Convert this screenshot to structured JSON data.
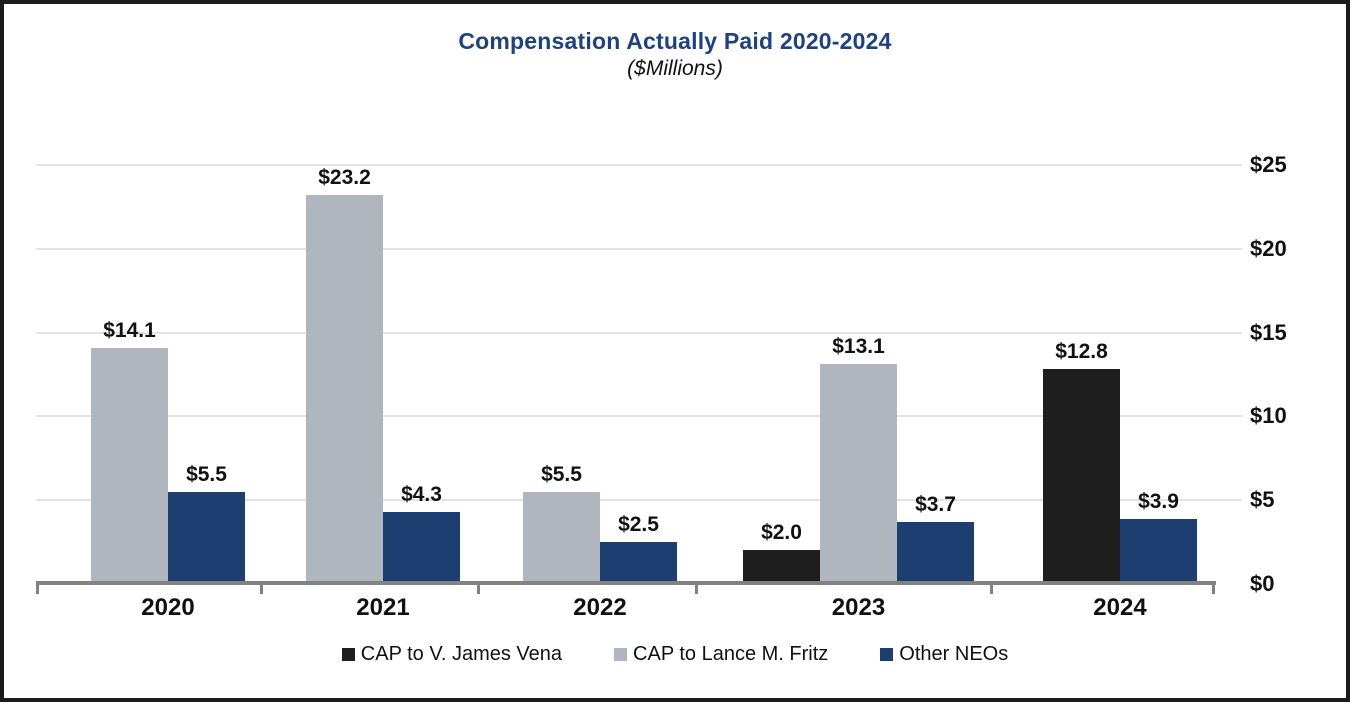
{
  "chart_data": {
    "type": "bar",
    "title": "Compensation Actually Paid 2020-2024",
    "subtitle": "($Millions)",
    "categories": [
      "2020",
      "2021",
      "2022",
      "2023",
      "2024"
    ],
    "series": [
      {
        "name": "CAP to V. James Vena",
        "color": "#1e1e1e",
        "values": [
          null,
          null,
          null,
          2.0,
          12.8
        ]
      },
      {
        "name": "CAP to Lance M. Fritz",
        "color": "#afb6bd",
        "values": [
          14.1,
          23.2,
          5.5,
          13.1,
          null
        ]
      },
      {
        "name": "Other NEOs",
        "color": "#1d3e71",
        "values": [
          5.5,
          4.3,
          2.5,
          3.7,
          3.9
        ]
      }
    ],
    "data_label_prefix": "$",
    "y_axis": {
      "side": "right",
      "tick_labels": [
        "$0",
        "$5",
        "$10",
        "$15",
        "$20",
        "$25"
      ],
      "tick_values": [
        0,
        5,
        10,
        15,
        20,
        25
      ],
      "min": 0,
      "max": 25
    },
    "grid": true,
    "legend_position": "bottom",
    "colors": {
      "title": "#1e4184",
      "gridline": "#e2e3e5",
      "axis": "#828282",
      "label_text": "#111111"
    }
  }
}
